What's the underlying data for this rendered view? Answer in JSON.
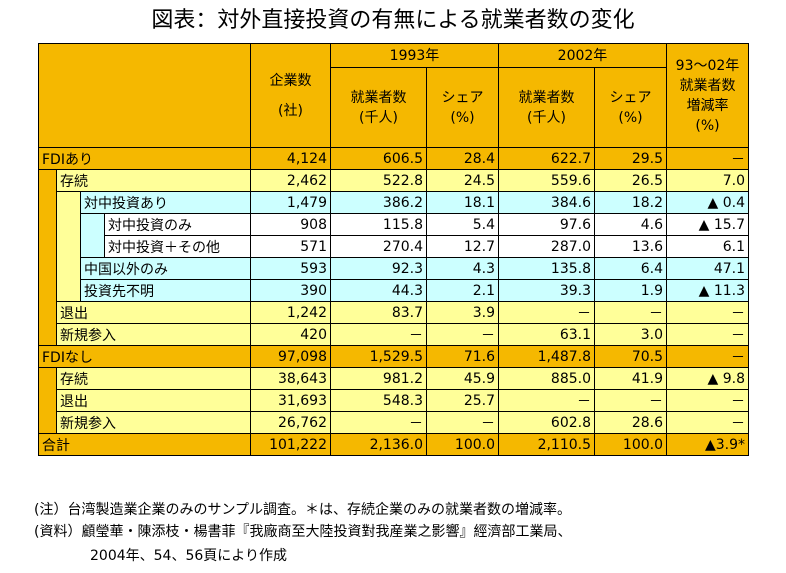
{
  "title": "図表：対外直接投資の有無による就業者数の変化",
  "header": {
    "firms": "企業数",
    "firms_unit": "(社)",
    "y1993": "1993年",
    "y2002": "2002年",
    "change_year": "93～02年",
    "change_label1": "就業者数",
    "change_label2": "増減率",
    "change_unit": "(%)",
    "emp": "就業者数",
    "emp_unit": "(千人)",
    "share": "シェア",
    "share_unit": "(%)"
  },
  "rows": [
    {
      "label": "FDIあり",
      "level": 0,
      "color": "orange",
      "firms": "4,124",
      "e93": "606.5",
      "s93": "28.4",
      "e02": "622.7",
      "s02": "29.5",
      "chg": "－"
    },
    {
      "label": "存続",
      "level": 1,
      "color": "yellow",
      "firms": "2,462",
      "e93": "522.8",
      "s93": "24.5",
      "e02": "559.6",
      "s02": "26.5",
      "chg": "7.0"
    },
    {
      "label": "対中投資あり",
      "level": 2,
      "color": "cyan",
      "firms": "1,479",
      "e93": "386.2",
      "s93": "18.1",
      "e02": "384.6",
      "s02": "18.2",
      "chg": "▲ 0.4"
    },
    {
      "label": "対中投資のみ",
      "level": 3,
      "color": "white",
      "firms": "908",
      "e93": "115.8",
      "s93": "5.4",
      "e02": "97.6",
      "s02": "4.6",
      "chg": "▲ 15.7"
    },
    {
      "label": "対中投資＋その他",
      "level": 3,
      "color": "white",
      "firms": "571",
      "e93": "270.4",
      "s93": "12.7",
      "e02": "287.0",
      "s02": "13.6",
      "chg": "6.1"
    },
    {
      "label": "中国以外のみ",
      "level": 2,
      "color": "cyan",
      "firms": "593",
      "e93": "92.3",
      "s93": "4.3",
      "e02": "135.8",
      "s02": "6.4",
      "chg": "47.1"
    },
    {
      "label": "投資先不明",
      "level": 2,
      "color": "cyan",
      "firms": "390",
      "e93": "44.3",
      "s93": "2.1",
      "e02": "39.3",
      "s02": "1.9",
      "chg": "▲ 11.3"
    },
    {
      "label": "退出",
      "level": 1,
      "color": "yellow",
      "firms": "1,242",
      "e93": "83.7",
      "s93": "3.9",
      "e02": "－",
      "s02": "－",
      "chg": "－"
    },
    {
      "label": "新規参入",
      "level": 1,
      "color": "yellow",
      "firms": "420",
      "e93": "－",
      "s93": "－",
      "e02": "63.1",
      "s02": "3.0",
      "chg": "－"
    },
    {
      "label": "FDIなし",
      "level": 0,
      "color": "orange",
      "firms": "97,098",
      "e93": "1,529.5",
      "s93": "71.6",
      "e02": "1,487.8",
      "s02": "70.5",
      "chg": "－"
    },
    {
      "label": "存続",
      "level": 1,
      "color": "yellow",
      "firms": "38,643",
      "e93": "981.2",
      "s93": "45.9",
      "e02": "885.0",
      "s02": "41.9",
      "chg": "▲ 9.8"
    },
    {
      "label": "退出",
      "level": 1,
      "color": "yellow",
      "firms": "31,693",
      "e93": "548.3",
      "s93": "25.7",
      "e02": "－",
      "s02": "－",
      "chg": "－"
    },
    {
      "label": "新規参入",
      "level": 1,
      "color": "yellow",
      "firms": "26,762",
      "e93": "－",
      "s93": "－",
      "e02": "602.8",
      "s02": "28.6",
      "chg": "－"
    },
    {
      "label": "合計",
      "level": 0,
      "color": "orange",
      "firms": "101,222",
      "e93": "2,136.0",
      "s93": "100.0",
      "e02": "2,110.5",
      "s02": "100.0",
      "chg": "▲3.9*"
    }
  ],
  "notes": {
    "note1": "(注）台湾製造業企業のみのサンプル調査。＊は、存続企業のみの就業者数の増減率。",
    "source1": "(資料）顧瑩華・陳添枝・楊書菲『我廠商至大陸投資對我産業之影響』經濟部工業局、",
    "source2": "2004年、54、56頁により作成"
  },
  "colors": {
    "orange": "#f5b800",
    "yellow": "#ffff99",
    "cyan": "#ccffff",
    "white": "#ffffff"
  }
}
